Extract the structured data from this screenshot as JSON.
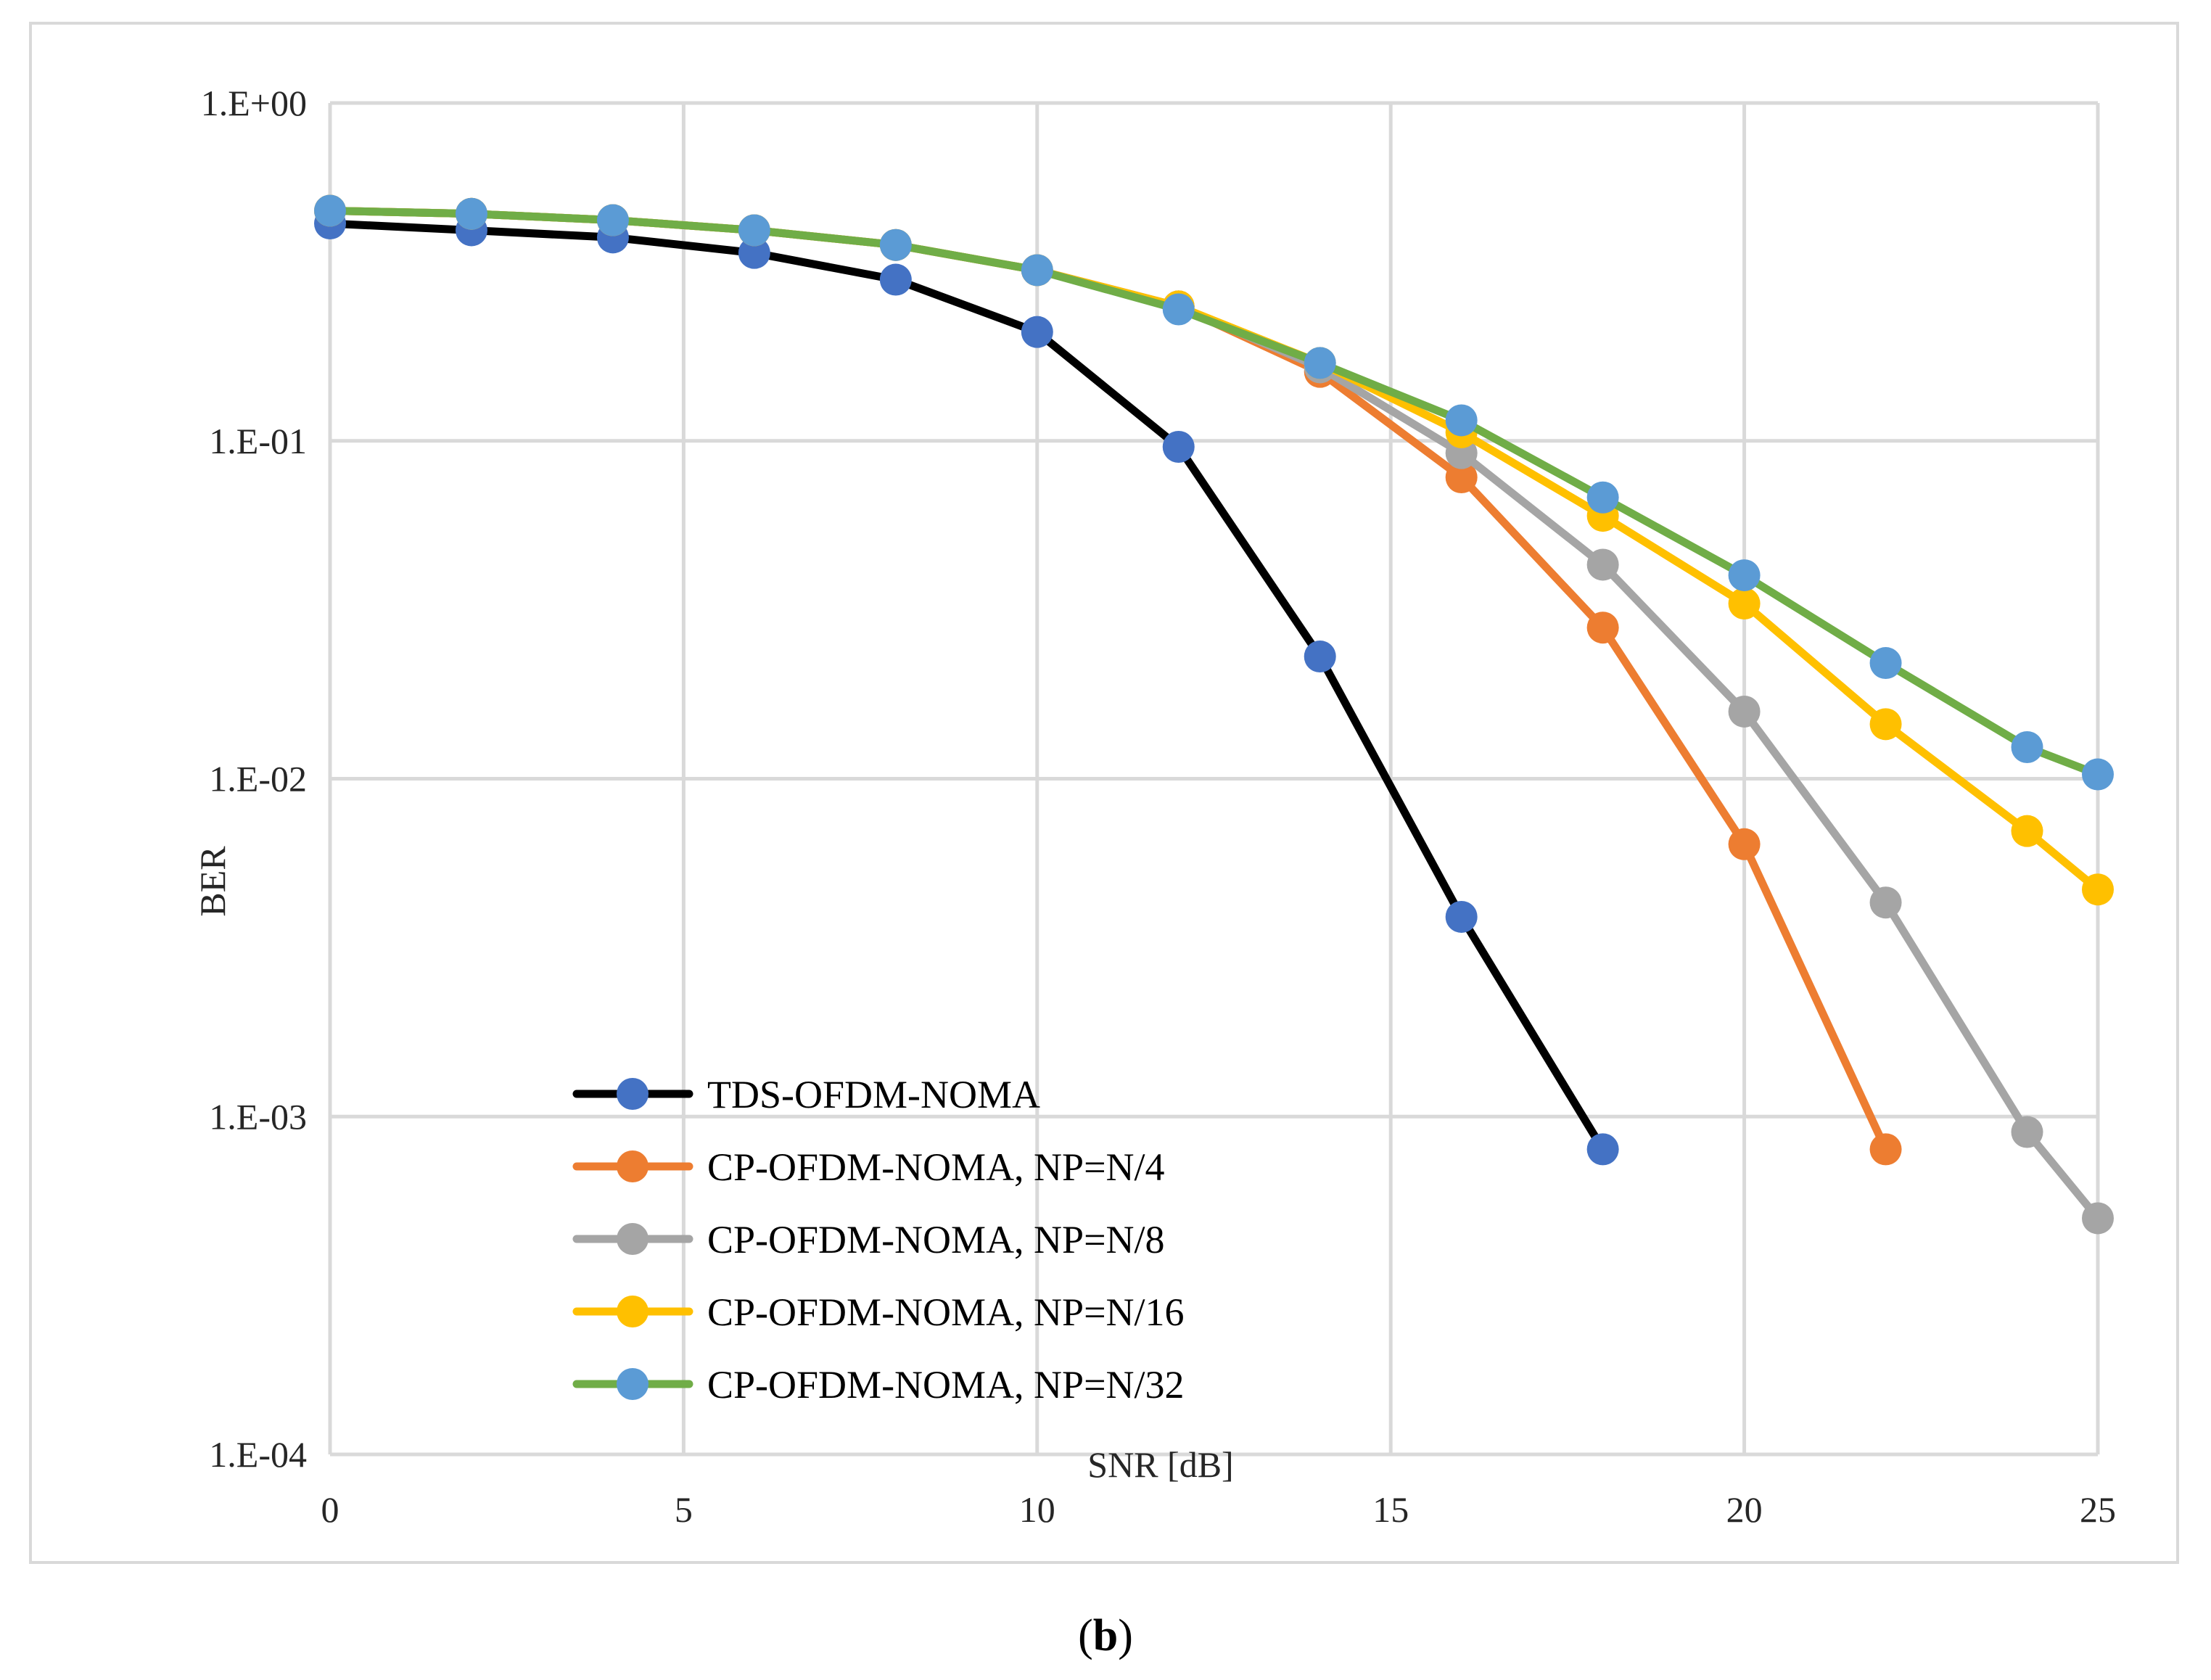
{
  "caption": {
    "open": "(",
    "letter": "b",
    "close": ")"
  },
  "chart_data": {
    "type": "line",
    "title": "",
    "xlabel": "SNR [dB]",
    "ylabel": "BER",
    "yscale": "log",
    "xlim": [
      0,
      25
    ],
    "ylim": [
      0.0001,
      1
    ],
    "x_ticks": [
      0,
      5,
      10,
      15,
      20,
      25
    ],
    "y_ticks": [
      {
        "value": 1,
        "label": "1.E+00"
      },
      {
        "value": 0.1,
        "label": "1.E-01"
      },
      {
        "value": 0.01,
        "label": "1.E-02"
      },
      {
        "value": 0.001,
        "label": "1.E-03"
      },
      {
        "value": 0.0001,
        "label": "1.E-04"
      }
    ],
    "grid": true,
    "legend_position": "bottom-left",
    "series": [
      {
        "name": "TDS-OFDM-NOMA",
        "line_color": "#000000",
        "marker_color": "#4472c4",
        "x": [
          0,
          2,
          4,
          6,
          8,
          10,
          12,
          14,
          16,
          18
        ],
        "values": [
          0.44,
          0.42,
          0.4,
          0.36,
          0.3,
          0.21,
          0.096,
          0.023,
          0.0039,
          0.0008
        ]
      },
      {
        "name": "CP-OFDM-NOMA, NP=N/4",
        "line_color": "#ed7d31",
        "marker_color": "#ed7d31",
        "x": [
          0,
          2,
          4,
          6,
          8,
          10,
          12,
          14,
          16,
          18,
          20,
          22
        ],
        "values": [
          0.48,
          0.47,
          0.45,
          0.42,
          0.38,
          0.32,
          0.25,
          0.16,
          0.078,
          0.028,
          0.0064,
          0.0008
        ]
      },
      {
        "name": "CP-OFDM-NOMA, NP=N/8",
        "line_color": "#a5a5a5",
        "marker_color": "#a5a5a5",
        "x": [
          0,
          2,
          4,
          6,
          8,
          10,
          12,
          14,
          16,
          18,
          20,
          22,
          24,
          25
        ],
        "values": [
          0.48,
          0.47,
          0.45,
          0.42,
          0.38,
          0.32,
          0.25,
          0.165,
          0.092,
          0.043,
          0.0158,
          0.0043,
          0.0009,
          0.0005
        ]
      },
      {
        "name": "CP-OFDM-NOMA, NP=N/16",
        "line_color": "#ffc000",
        "marker_color": "#ffc000",
        "x": [
          0,
          2,
          4,
          6,
          8,
          10,
          12,
          14,
          16,
          18,
          20,
          22,
          24,
          25
        ],
        "values": [
          0.48,
          0.47,
          0.45,
          0.42,
          0.38,
          0.32,
          0.25,
          0.17,
          0.106,
          0.06,
          0.033,
          0.0145,
          0.007,
          0.0047
        ]
      },
      {
        "name": "CP-OFDM-NOMA, NP=N/32",
        "line_color": "#70ad47",
        "marker_color": "#5b9bd5",
        "x": [
          0,
          2,
          4,
          6,
          8,
          10,
          12,
          14,
          16,
          18,
          20,
          22,
          24,
          25
        ],
        "values": [
          0.48,
          0.47,
          0.45,
          0.42,
          0.38,
          0.32,
          0.245,
          0.17,
          0.115,
          0.068,
          0.04,
          0.022,
          0.0124,
          0.0103
        ]
      }
    ]
  }
}
